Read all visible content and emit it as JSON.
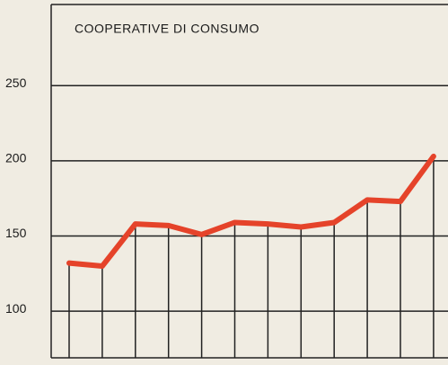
{
  "chart_data": {
    "type": "line",
    "title": "COOPERATIVE DI CONSUMO",
    "categories": [
      null,
      null,
      null,
      null,
      null,
      null,
      null,
      null,
      null,
      null,
      null,
      null
    ],
    "series": [
      {
        "name": null,
        "color": "#e5432a",
        "values": [
          132,
          130,
          158,
          157,
          151,
          159,
          158,
          156,
          159,
          174,
          173,
          203
        ]
      }
    ],
    "ylim": [
      69,
      304
    ],
    "yticks": [
      100,
      150,
      200,
      250
    ],
    "grid": true
  }
}
